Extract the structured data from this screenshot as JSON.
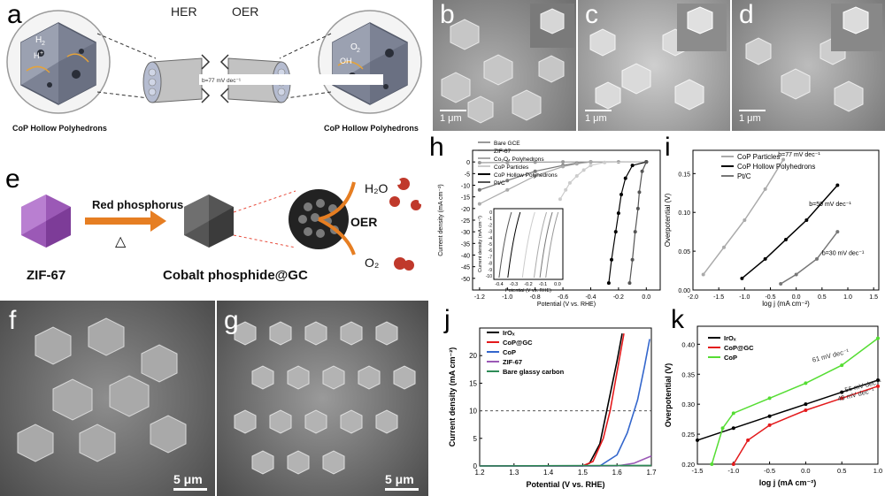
{
  "panel_a": {
    "label": "a",
    "her": "HER",
    "oer": "OER",
    "left_caption": "CoP Hollow Polyhedrons",
    "right_caption": "CoP Hollow Polyhedrons",
    "h2": "H",
    "h2_sub": "2",
    "hplus": "H",
    "o2": "O",
    "o2_sub": "2",
    "oh": "OH",
    "tube_text": "b=77 mV dec⁻¹"
  },
  "panel_b": {
    "label": "b",
    "scale": "1 μm"
  },
  "panel_c": {
    "label": "c",
    "scale": "1 μm"
  },
  "panel_d": {
    "label": "d",
    "scale": "1 μm"
  },
  "panel_e": {
    "label": "e",
    "arrow_label": "Red phosphorus",
    "heat": "△",
    "left_caption": "ZIF-67",
    "mid_caption": "Cobalt phosphide@GC",
    "oer": "OER",
    "h2o": "H₂O",
    "o2": "O₂"
  },
  "panel_f": {
    "label": "f",
    "scale": "5 μm"
  },
  "panel_g": {
    "label": "g",
    "scale": "5 μm"
  },
  "panel_h_label": "h",
  "panel_i_label": "i",
  "panel_j_label": "j",
  "panel_k_label": "k",
  "colors": {
    "accent_orange": "#e67e22",
    "purple": "#8e44ad"
  },
  "chart_data": [
    {
      "id": "h",
      "type": "line",
      "xlabel": "Potential (V vs. RHE)",
      "ylabel": "Current density (mA cm⁻²)",
      "xlim": [
        -1.25,
        0.1
      ],
      "ylim": [
        -55,
        5
      ],
      "xticks": [
        "-1.2",
        "-1.0",
        "-0.8",
        "-0.6",
        "-0.4",
        "-0.2",
        "0.0"
      ],
      "yticks": [
        "0",
        "-5",
        "-10",
        "-15",
        "-20",
        "-25",
        "-30",
        "-35",
        "-40",
        "-45",
        "-50"
      ],
      "legend": [
        "Bare GCE",
        "ZIF-67",
        "Co₃O₄ Polyhedrons",
        "CoP Particles",
        "CoP Hollow Polyhedrons",
        "Pt/C"
      ],
      "series": [
        {
          "name": "Bare GCE",
          "x": [
            -1.2,
            -1.0,
            -0.8,
            -0.6,
            -0.4,
            -0.2,
            0.0
          ],
          "y": [
            -0.3,
            -0.2,
            -0.1,
            0,
            0,
            0,
            0
          ]
        },
        {
          "name": "ZIF-67",
          "x": [
            -1.2,
            -1.0,
            -0.8,
            -0.6,
            -0.5,
            -0.4,
            0.0
          ],
          "y": [
            -12,
            -8,
            -4,
            -1.5,
            -0.5,
            0,
            0
          ]
        },
        {
          "name": "Co₃O₄ Polyhedrons",
          "x": [
            -1.2,
            -1.0,
            -0.8,
            -0.6,
            -0.5,
            -0.4,
            0.0
          ],
          "y": [
            -18,
            -12,
            -6,
            -2,
            -0.8,
            0,
            0
          ]
        },
        {
          "name": "CoP Particles",
          "x": [
            -0.62,
            -0.58,
            -0.55,
            -0.5,
            -0.45,
            -0.4,
            -0.3,
            0.0
          ],
          "y": [
            -16,
            -12,
            -9,
            -6,
            -3.5,
            -1.5,
            -0.2,
            0
          ]
        },
        {
          "name": "CoP Hollow Polyhedrons",
          "x": [
            -0.27,
            -0.25,
            -0.22,
            -0.2,
            -0.18,
            -0.15,
            -0.1,
            0.0
          ],
          "y": [
            -52,
            -42,
            -30,
            -22,
            -14,
            -7,
            -1.5,
            0
          ]
        },
        {
          "name": "Pt/C",
          "x": [
            -0.12,
            -0.1,
            -0.08,
            -0.06,
            -0.05,
            -0.03,
            0.0
          ],
          "y": [
            -52,
            -42,
            -30,
            -20,
            -13,
            -4,
            0
          ]
        }
      ],
      "inset": {
        "xlabel": "Potential (V vs. RHE)",
        "ylabel": "Current density (mA cm⁻²)",
        "xticks": [
          "-0.4",
          "-0.3",
          "-0.2",
          "-0.1",
          "0.0"
        ],
        "yticks": [
          "0",
          "-1",
          "-2",
          "-3",
          "-4",
          "-5",
          "-6",
          "-7",
          "-8",
          "-9",
          "-10"
        ]
      }
    },
    {
      "id": "i",
      "type": "line",
      "xlabel": "log j",
      "xlabel_unit": "(mA cm⁻²)",
      "ylabel": "Overpotential (V)",
      "xlim": [
        -2.0,
        1.6
      ],
      "ylim": [
        0,
        0.18
      ],
      "xticks": [
        "-2.0",
        "-1.5",
        "-1.0",
        "-0.5",
        "0.0",
        "0.5",
        "1.0",
        "1.5"
      ],
      "yticks": [
        "0.00",
        "0.05",
        "0.10",
        "0.15"
      ],
      "legend": [
        "CoP Particles",
        "CoP Hollow Polyhedrons",
        "Pt/C"
      ],
      "annotations": [
        "b=77 mV dec⁻¹",
        "b=59 mV dec⁻¹",
        "b=30 mV dec⁻¹"
      ],
      "series": [
        {
          "name": "CoP Particles",
          "x": [
            -1.8,
            -1.4,
            -1.0,
            -0.6,
            -0.25
          ],
          "y": [
            0.02,
            0.055,
            0.09,
            0.13,
            0.168
          ]
        },
        {
          "name": "CoP Hollow Polyhedrons",
          "x": [
            -1.05,
            -0.6,
            -0.2,
            0.2,
            0.8
          ],
          "y": [
            0.015,
            0.04,
            0.065,
            0.09,
            0.135
          ]
        },
        {
          "name": "Pt/C",
          "x": [
            -0.3,
            0.0,
            0.4,
            0.8
          ],
          "y": [
            0.008,
            0.02,
            0.04,
            0.075
          ]
        }
      ]
    },
    {
      "id": "j",
      "type": "line",
      "xlabel": "Potential (V vs. RHE)",
      "ylabel": "Current density (mA cm⁻²)",
      "xlim": [
        1.2,
        1.7
      ],
      "ylim": [
        0,
        25
      ],
      "xticks": [
        "1.2",
        "1.3",
        "1.4",
        "1.5",
        "1.6",
        "1.7"
      ],
      "yticks": [
        "0",
        "5",
        "10",
        "15",
        "20"
      ],
      "reference_line_y": 10,
      "legend": [
        "IrOₓ",
        "CoP@GC",
        "CoP",
        "ZIF-67",
        "Bare glassy carbon"
      ],
      "series": [
        {
          "name": "IrOₓ",
          "x": [
            1.2,
            1.5,
            1.52,
            1.55,
            1.57,
            1.6,
            1.615
          ],
          "y": [
            0,
            0,
            0.5,
            4,
            10,
            19,
            24
          ]
        },
        {
          "name": "CoP@GC",
          "x": [
            1.2,
            1.5,
            1.53,
            1.56,
            1.58,
            1.6,
            1.62
          ],
          "y": [
            0,
            0,
            0.8,
            5,
            10,
            17,
            24
          ]
        },
        {
          "name": "CoP",
          "x": [
            1.2,
            1.55,
            1.6,
            1.63,
            1.66,
            1.68,
            1.695
          ],
          "y": [
            0,
            0,
            2,
            6,
            12,
            18,
            23
          ]
        },
        {
          "name": "ZIF-67",
          "x": [
            1.2,
            1.6,
            1.65,
            1.7
          ],
          "y": [
            0,
            0,
            0.5,
            1.8
          ]
        },
        {
          "name": "Bare glassy carbon",
          "x": [
            1.2,
            1.7
          ],
          "y": [
            0,
            0.1
          ]
        }
      ]
    },
    {
      "id": "k",
      "type": "line",
      "xlabel": "log j",
      "xlabel_unit": "(mA cm⁻²)",
      "ylabel": "Overpotential (V)",
      "xlim": [
        -1.5,
        1.0
      ],
      "ylim": [
        0.2,
        0.43
      ],
      "xticks": [
        "-1.5",
        "-1.0",
        "-0.5",
        "0.0",
        "0.5",
        "1.0"
      ],
      "yticks": [
        "0.20",
        "0.25",
        "0.30",
        "0.35",
        "0.40"
      ],
      "legend": [
        "IrOₓ",
        "CoP@GC",
        "CoP"
      ],
      "annotations": [
        "61 mV dec⁻¹",
        "56 mV dec⁻¹",
        "49 mV dec⁻¹"
      ],
      "series": [
        {
          "name": "IrOₓ",
          "x": [
            -1.5,
            -1.0,
            -0.5,
            0.0,
            0.5,
            1.0
          ],
          "y": [
            0.24,
            0.26,
            0.28,
            0.3,
            0.32,
            0.34
          ]
        },
        {
          "name": "CoP@GC",
          "x": [
            -1.0,
            -0.8,
            -0.5,
            0.0,
            0.5,
            1.0
          ],
          "y": [
            0.2,
            0.24,
            0.265,
            0.29,
            0.31,
            0.33
          ]
        },
        {
          "name": "CoP",
          "x": [
            -1.3,
            -1.15,
            -1.0,
            -0.5,
            0.0,
            0.5,
            1.0
          ],
          "y": [
            0.2,
            0.26,
            0.285,
            0.31,
            0.335,
            0.365,
            0.41
          ]
        }
      ]
    }
  ]
}
